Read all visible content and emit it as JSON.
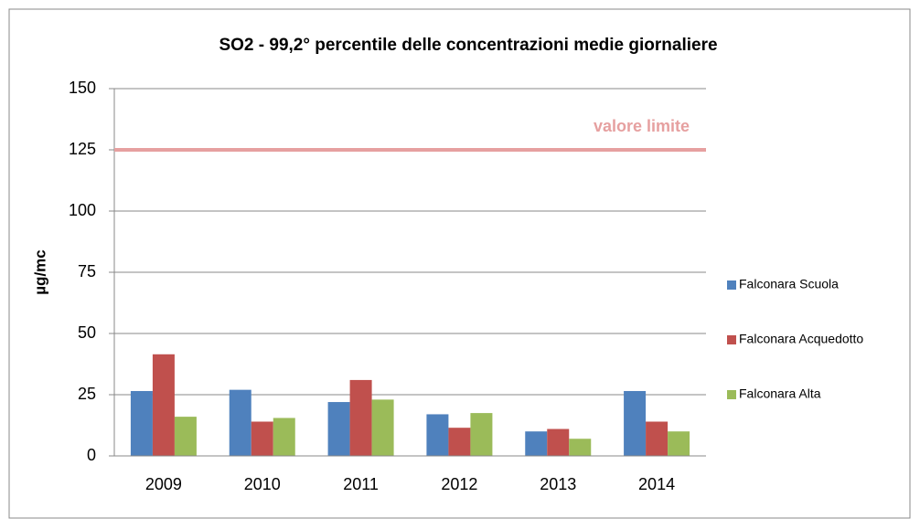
{
  "chart_data": {
    "type": "bar",
    "title": "SO2 - 99,2° percentile delle concentrazioni medie giornaliere",
    "y_label": "µg/mc",
    "categories": [
      "2009",
      "2010",
      "2011",
      "2012",
      "2013",
      "2014"
    ],
    "series": [
      {
        "name": "Falconara Scuola",
        "color": "#4f81bd",
        "values": [
          26.5,
          27,
          22,
          17,
          10,
          26.5
        ]
      },
      {
        "name": "Falconara Acquedotto",
        "color": "#c0504d",
        "values": [
          41.5,
          14,
          31,
          11.5,
          11,
          14
        ]
      },
      {
        "name": "Falconara Alta",
        "color": "#9bbb59",
        "values": [
          16,
          15.5,
          23,
          17.5,
          7,
          10
        ]
      }
    ],
    "ylim": [
      0,
      150
    ],
    "yticks": [
      0,
      25,
      50,
      75,
      100,
      125,
      150
    ],
    "grid": true,
    "reference_line": {
      "value": 125,
      "label": "valore limite",
      "color": "#e6a0a0"
    },
    "legend": "right"
  }
}
